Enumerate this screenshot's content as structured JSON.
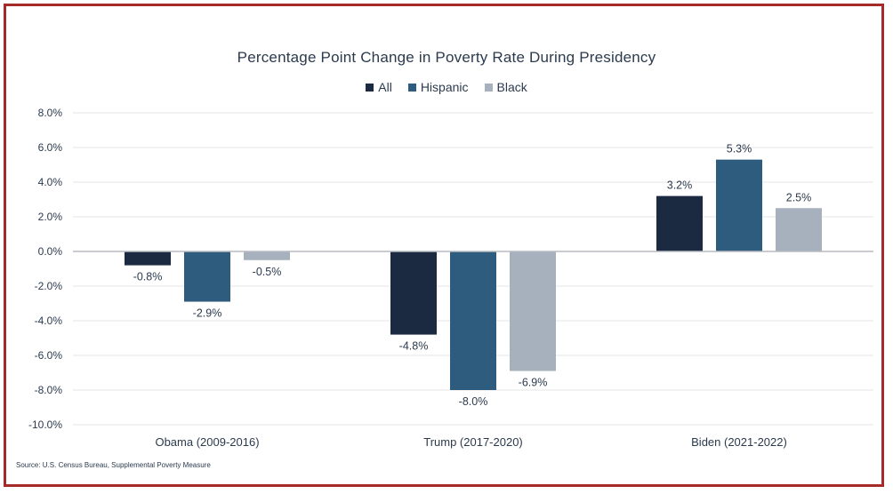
{
  "chart_data": {
    "type": "bar",
    "title": "Percentage Point Change in Poverty Rate During Presidency",
    "categories": [
      "Obama (2009-2016)",
      "Trump (2017-2020)",
      "Biden (2021-2022)"
    ],
    "series": [
      {
        "name": "All",
        "values": [
          -0.8,
          -4.8,
          3.2
        ],
        "color": "#1b2a41",
        "labels": [
          "-0.8%",
          "-4.8%",
          "3.2%"
        ]
      },
      {
        "name": "Hispanic",
        "values": [
          -2.9,
          -8.0,
          5.3
        ],
        "color": "#2e5c7e",
        "labels": [
          "-2.9%",
          "-8.0%",
          "5.3%"
        ]
      },
      {
        "name": "Black",
        "values": [
          -0.5,
          -6.9,
          2.5
        ],
        "color": "#a7b1bd",
        "labels": [
          "-0.5%",
          "-6.9%",
          "2.5%"
        ]
      }
    ],
    "ylim": [
      -10,
      8
    ],
    "yticks": [
      8,
      6,
      4,
      2,
      0,
      -2,
      -4,
      -6,
      -8,
      -10
    ],
    "ytick_labels": [
      "8.0%",
      "6.0%",
      "4.0%",
      "2.0%",
      "0.0%",
      "-2.0%",
      "-4.0%",
      "-6.0%",
      "-8.0%",
      "-10.0%"
    ],
    "grid": true,
    "legend_position": "top-center",
    "xlabel": "",
    "ylabel": ""
  },
  "source": "Source: U.S. Census Bureau,  Supplemental Poverty Measure",
  "colors": {
    "frame": "#a52a2a"
  }
}
